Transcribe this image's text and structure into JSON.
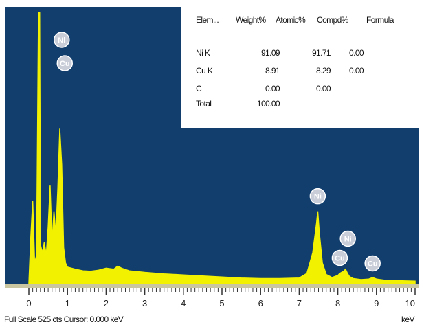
{
  "chart_data": {
    "type": "line",
    "xlim": [
      0,
      10
    ],
    "x_ticks": [
      "0",
      "1",
      "2",
      "3",
      "4",
      "5",
      "6",
      "7",
      "8",
      "9",
      "10"
    ],
    "xunit": "keV",
    "background_color": "#123e6e",
    "trace_color": "#f2f200",
    "spectrum": {
      "x": [
        0.0,
        0.05,
        0.1,
        0.15,
        0.2,
        0.25,
        0.28,
        0.3,
        0.35,
        0.4,
        0.45,
        0.5,
        0.55,
        0.6,
        0.65,
        0.7,
        0.75,
        0.8,
        0.85,
        0.9,
        0.95,
        1.0,
        1.1,
        1.2,
        1.4,
        1.6,
        1.8,
        2.0,
        2.2,
        2.3,
        2.4,
        2.6,
        3.0,
        3.5,
        4.0,
        4.5,
        5.0,
        5.5,
        6.0,
        6.5,
        7.0,
        7.2,
        7.35,
        7.45,
        7.48,
        7.52,
        7.6,
        7.7,
        7.85,
        8.0,
        8.05,
        8.15,
        8.2,
        8.25,
        8.3,
        8.4,
        8.6,
        8.8,
        8.9,
        9.0,
        9.2,
        9.5,
        10.0
      ],
      "y": [
        0,
        90,
        160,
        40,
        55,
        600,
        600,
        75,
        60,
        80,
        55,
        110,
        190,
        80,
        140,
        95,
        185,
        300,
        230,
        70,
        40,
        32,
        30,
        28,
        25,
        24,
        26,
        30,
        28,
        34,
        30,
        25,
        22,
        19,
        17,
        15,
        13,
        11,
        10,
        10,
        11,
        20,
        60,
        118,
        140,
        100,
        40,
        18,
        12,
        16,
        20,
        24,
        28,
        20,
        14,
        10,
        8,
        9,
        12,
        9,
        7,
        6,
        5
      ]
    },
    "peak_labels": [
      {
        "element": "Ni",
        "energy": 0.85,
        "level": 1
      },
      {
        "element": "Cu",
        "energy": 0.93,
        "level": 0
      },
      {
        "element": "Ni",
        "energy": 7.48,
        "level": 0
      },
      {
        "element": "Ni",
        "energy": 8.26,
        "level": 1
      },
      {
        "element": "Cu",
        "energy": 8.05,
        "level": 0
      },
      {
        "element": "Cu",
        "energy": 8.9,
        "level": 0
      }
    ],
    "table": {
      "headers": [
        "Elem...",
        "Weight%",
        "Atomic%",
        "Compd%",
        "Formula"
      ],
      "rows": [
        {
          "element": "Ni K",
          "weight": "91.09",
          "atomic": "91.71",
          "compd": "0.00",
          "formula": ""
        },
        {
          "element": "Cu K",
          "weight": "8.91",
          "atomic": "8.29",
          "compd": "0.00",
          "formula": ""
        },
        {
          "element": "C",
          "weight": "0.00",
          "atomic": "0.00",
          "compd": "",
          "formula": ""
        },
        {
          "element": "Total",
          "weight": "100.00",
          "atomic": "",
          "compd": "",
          "formula": ""
        }
      ]
    },
    "footer": {
      "left": "Full Scale 525 cts  Cursor: 0.000 keV",
      "right": "keV"
    }
  }
}
